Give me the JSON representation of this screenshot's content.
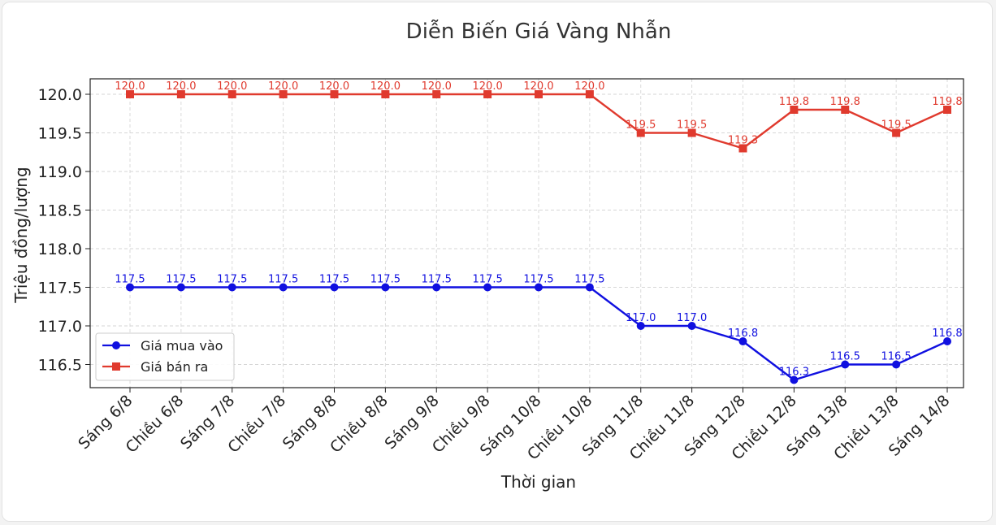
{
  "chart_data": {
    "type": "line",
    "title": "Diễn Biến Giá Vàng Nhẫn",
    "xlabel": "Thời gian",
    "ylabel": "Triệu đồng/lượng",
    "ylim": [
      116.2,
      120.2
    ],
    "yticks": [
      "116.5",
      "117.0",
      "117.5",
      "118.0",
      "118.5",
      "119.0",
      "119.5",
      "120.0"
    ],
    "grid": true,
    "legend_position": "lower-left",
    "categories": [
      "Sáng 6/8",
      "Chiều 6/8",
      "Sáng 7/8",
      "Chiều 7/8",
      "Sáng 8/8",
      "Chiều 8/8",
      "Sáng 9/8",
      "Chiều 9/8",
      "Sáng 10/8",
      "Chiều 10/8",
      "Sáng 11/8",
      "Chiều 11/8",
      "Sáng 12/8",
      "Chiều 12/8",
      "Sáng 13/8",
      "Chiều 13/8",
      "Sáng 14/8"
    ],
    "series": [
      {
        "name": "Giá mua vào",
        "color": "#1010e0",
        "marker": "circle",
        "values": [
          117.5,
          117.5,
          117.5,
          117.5,
          117.5,
          117.5,
          117.5,
          117.5,
          117.5,
          117.5,
          117.0,
          117.0,
          116.8,
          116.3,
          116.5,
          116.5,
          116.8
        ],
        "labels": [
          "117.5",
          "117.5",
          "117.5",
          "117.5",
          "117.5",
          "117.5",
          "117.5",
          "117.5",
          "117.5",
          "117.5",
          "117.0",
          "117.0",
          "116.8",
          "116.3",
          "116.5",
          "116.5",
          "116.8"
        ]
      },
      {
        "name": "Giá bán ra",
        "color": "#e03a2e",
        "marker": "square",
        "values": [
          120.0,
          120.0,
          120.0,
          120.0,
          120.0,
          120.0,
          120.0,
          120.0,
          120.0,
          120.0,
          119.5,
          119.5,
          119.3,
          119.8,
          119.8,
          119.5,
          119.8
        ],
        "labels": [
          "120.0",
          "120.0",
          "120.0",
          "120.0",
          "120.0",
          "120.0",
          "120.0",
          "120.0",
          "120.0",
          "120.0",
          "119.5",
          "119.5",
          "119.3",
          "119.8",
          "119.8",
          "119.5",
          "119.8"
        ]
      }
    ]
  }
}
